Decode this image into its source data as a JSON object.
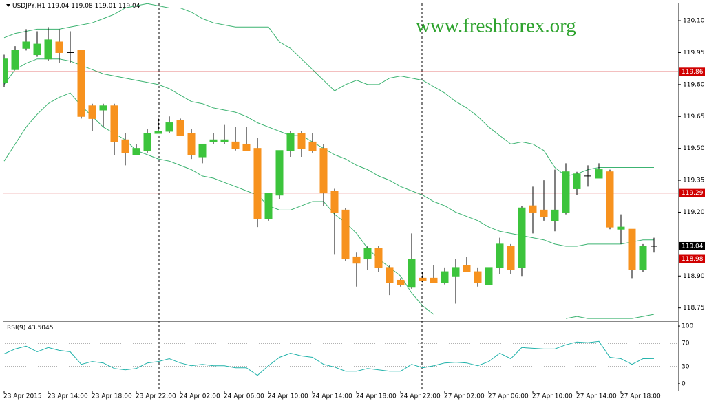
{
  "chart_data": [
    {
      "type": "candlestick",
      "title": "USDJPY,H1",
      "watermark": "www.freshforex.org",
      "categories": [
        "23 Apr 2015",
        null,
        null,
        null,
        "23 Apr 14:00",
        null,
        null,
        null,
        "23 Apr 18:00",
        null,
        null,
        null,
        "23 Apr 22:00",
        null,
        null,
        null,
        "24 Apr 02:00",
        null,
        null,
        null,
        "24 Apr 06:00",
        null,
        null,
        null,
        "24 Apr 10:00",
        null,
        null,
        null,
        "24 Apr 14:00",
        null,
        null,
        null,
        "24 Apr 18:00",
        null,
        null,
        null,
        "24 Apr 22:00",
        null,
        null,
        null,
        "27 Apr 02:00",
        null,
        null,
        null,
        "27 Apr 06:00",
        null,
        null,
        null,
        "27 Apr 10:00",
        null,
        null,
        null,
        "27 Apr 14:00",
        null,
        null,
        null,
        "27 Apr 18:00",
        null,
        null,
        null
      ],
      "open": [
        119.81,
        119.87,
        119.97,
        119.94,
        119.92,
        120.0,
        119.95,
        119.96,
        119.7,
        119.68,
        119.7,
        119.54,
        119.47,
        119.49,
        119.57,
        119.58,
        119.63,
        119.57,
        119.46,
        119.53,
        119.53,
        119.53,
        119.52,
        119.5,
        119.17,
        119.28,
        119.49,
        119.57,
        119.53,
        119.5,
        119.3,
        119.21,
        118.99,
        118.98,
        119.03,
        118.94,
        118.88,
        118.85,
        118.89,
        118.89,
        118.87,
        118.9,
        118.95,
        118.92,
        118.86,
        118.94,
        119.04,
        118.94,
        119.23,
        119.21,
        119.16,
        119.2,
        119.31,
        119.37,
        119.36,
        119.39,
        119.12,
        119.12,
        118.93,
        119.04
      ],
      "high": [
        119.94,
        119.98,
        120.06,
        120.05,
        120.07,
        120.06,
        120.05,
        119.96,
        119.71,
        119.71,
        119.71,
        119.57,
        119.52,
        119.59,
        119.64,
        119.65,
        119.64,
        119.59,
        119.52,
        119.57,
        119.61,
        119.6,
        119.6,
        119.55,
        119.29,
        119.49,
        119.58,
        119.58,
        119.57,
        119.52,
        119.31,
        119.22,
        119.01,
        119.04,
        119.04,
        118.95,
        118.89,
        119.1,
        118.92,
        118.95,
        118.94,
        118.98,
        118.99,
        118.94,
        118.94,
        119.08,
        119.05,
        119.23,
        119.32,
        119.35,
        119.4,
        119.43,
        119.39,
        119.42,
        119.43,
        119.4,
        119.19,
        119.12,
        119.05,
        119.08
      ],
      "low": [
        119.79,
        119.87,
        119.96,
        119.93,
        119.91,
        119.9,
        119.9,
        119.64,
        119.58,
        119.6,
        119.47,
        119.42,
        119.47,
        119.48,
        119.57,
        119.57,
        119.56,
        119.45,
        119.43,
        119.52,
        119.52,
        119.49,
        119.49,
        119.13,
        119.16,
        119.26,
        119.46,
        119.46,
        119.48,
        119.23,
        119.0,
        118.97,
        118.85,
        118.93,
        118.92,
        118.81,
        118.85,
        118.84,
        118.87,
        118.87,
        118.86,
        118.77,
        118.92,
        118.85,
        118.86,
        118.91,
        118.91,
        118.9,
        119.1,
        119.16,
        119.11,
        119.19,
        119.28,
        119.32,
        119.36,
        119.12,
        119.05,
        118.89,
        118.92,
        119.01
      ],
      "close": [
        119.92,
        119.96,
        120.0,
        119.99,
        120.01,
        119.95,
        119.95,
        119.65,
        119.64,
        119.7,
        119.53,
        119.48,
        119.5,
        119.57,
        119.58,
        119.62,
        119.56,
        119.47,
        119.52,
        119.54,
        119.54,
        119.5,
        119.49,
        119.17,
        119.29,
        119.49,
        119.57,
        119.5,
        119.49,
        119.29,
        119.2,
        118.98,
        118.96,
        119.03,
        118.94,
        118.87,
        118.86,
        118.98,
        118.88,
        118.87,
        118.92,
        118.94,
        118.92,
        118.87,
        118.94,
        119.05,
        118.93,
        119.22,
        119.2,
        119.18,
        119.21,
        119.39,
        119.38,
        119.37,
        119.4,
        119.13,
        119.13,
        118.93,
        119.04,
        119.04
      ],
      "up_color": "#3cc43c",
      "down_color": "#f7921e",
      "wick_color": "#000000",
      "bands": [
        {
          "color": "#3cb371",
          "values": [
            120.02,
            120.04,
            120.05,
            120.06,
            120.06,
            120.06,
            120.07,
            120.08,
            120.09,
            120.11,
            120.13,
            120.16,
            120.17,
            120.18,
            120.17,
            120.16,
            120.16,
            120.14,
            120.11,
            120.09,
            120.08,
            120.07,
            120.07,
            120.07,
            120.07,
            120.0,
            119.97,
            119.92,
            119.87,
            119.82,
            119.77,
            119.8,
            119.82,
            119.8,
            119.8,
            119.83,
            119.84,
            119.83,
            119.82,
            119.79,
            119.76,
            119.72,
            119.69,
            119.65,
            119.6,
            119.56,
            119.52,
            119.53,
            119.52,
            119.49,
            119.41,
            119.37,
            119.38,
            119.4,
            119.41,
            119.41,
            119.41,
            119.41,
            119.41,
            119.41
          ]
        },
        {
          "color": "#3cb371",
          "values": [
            119.8,
            119.87,
            119.9,
            119.92,
            119.92,
            119.92,
            119.91,
            119.89,
            119.87,
            119.85,
            119.84,
            119.83,
            119.82,
            119.81,
            119.8,
            119.78,
            119.75,
            119.72,
            119.71,
            119.69,
            119.68,
            119.67,
            119.65,
            119.62,
            119.6,
            119.58,
            119.56,
            119.56,
            119.53,
            119.5,
            119.47,
            119.45,
            119.42,
            119.4,
            119.37,
            119.35,
            119.32,
            119.3,
            119.28,
            119.25,
            119.23,
            119.2,
            119.18,
            119.16,
            119.13,
            119.11,
            119.1,
            119.09,
            119.08,
            119.07,
            119.05,
            119.04,
            119.04,
            119.05,
            119.05,
            119.05,
            119.05,
            119.06,
            119.07,
            119.07
          ]
        },
        {
          "color": "#3cb371",
          "values": [
            119.44,
            119.52,
            119.6,
            119.66,
            119.71,
            119.74,
            119.76,
            119.7,
            119.65,
            119.6,
            119.57,
            119.54,
            119.49,
            119.47,
            119.45,
            119.44,
            119.42,
            119.4,
            119.37,
            119.36,
            119.34,
            119.32,
            119.3,
            119.28,
            119.23,
            119.21,
            119.21,
            119.23,
            119.25,
            119.25,
            119.19,
            119.15,
            119.1,
            119.03,
            118.98,
            118.94,
            118.9,
            118.82,
            118.76,
            118.72,
            null,
            null,
            null,
            null,
            null,
            null,
            null,
            null,
            null,
            null,
            null,
            118.7,
            118.71,
            118.7,
            118.7,
            118.7,
            118.7,
            118.7,
            118.71,
            118.72
          ]
        }
      ],
      "levels": [
        {
          "value": 119.86,
          "color": "#d00000"
        },
        {
          "value": 119.29,
          "color": "#d00000"
        },
        {
          "value": 118.98,
          "color": "#d00000"
        }
      ],
      "current_price": 119.04,
      "ylim": [
        118.694,
        120.181
      ],
      "yticks": [
        {
          "value": 120.1,
          "label": "120.10"
        },
        119.95,
        {
          "value": 119.8,
          "label": "119.80"
        },
        119.65,
        {
          "value": 119.5,
          "label": "119.50"
        },
        119.35,
        {
          "value": 119.2,
          "label": "119.20"
        },
        {
          "value": 118.9,
          "label": "118.90"
        },
        118.75
      ]
    },
    {
      "type": "line",
      "title": "RSI(9)",
      "color": "#20b2aa",
      "values": [
        51.8,
        60.2,
        65.1,
        55.4,
        62.7,
        57.8,
        55.4,
        33.7,
        38.6,
        36.1,
        26.5,
        24.1,
        26.5,
        36.1,
        38.6,
        43.4,
        36.1,
        31.3,
        33.7,
        31.3,
        31.3,
        27.7,
        27.7,
        14.5,
        31.3,
        45.8,
        53.0,
        48.2,
        45.8,
        33.7,
        28.9,
        21.7,
        21.7,
        26.5,
        24.1,
        21.7,
        21.7,
        33.7,
        27.7,
        31.3,
        36.1,
        37.3,
        36.1,
        31.3,
        38.6,
        53.0,
        43.4,
        62.7,
        61.4,
        60.2,
        60.2,
        67.5,
        72.3,
        71.1,
        73.5,
        45.8,
        43.4,
        33.7,
        43.4,
        43.5045
      ],
      "ylim": [
        -12,
        108.4
      ],
      "yticks": [
        100,
        70,
        30,
        0
      ],
      "grid": true
    }
  ]
}
